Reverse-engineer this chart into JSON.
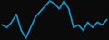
{
  "x": [
    0,
    1,
    2,
    3,
    4,
    5,
    6,
    7,
    8,
    9,
    10,
    11,
    12,
    13,
    14,
    15,
    16,
    17,
    18,
    19,
    20,
    21,
    22
  ],
  "y": [
    6,
    5,
    7,
    10,
    4,
    1,
    5,
    9,
    11,
    13,
    15,
    14,
    12,
    15,
    12,
    5,
    6,
    4,
    7,
    5,
    7,
    6,
    8
  ],
  "line_color": "#1a8fc1",
  "linewidth": 1.3,
  "background_color": "#0a0a0a"
}
